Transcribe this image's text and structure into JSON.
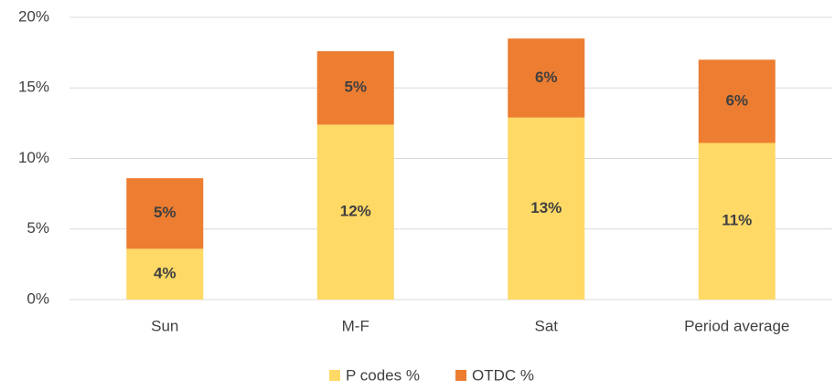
{
  "chart_data": {
    "type": "stacked_bar",
    "categories": [
      "Sun",
      "M-F",
      "Sat",
      "Period average"
    ],
    "series": [
      {
        "name": "P codes %",
        "color": "#ffd966",
        "values": [
          3.6,
          12.4,
          12.9,
          11.1
        ],
        "value_labels": [
          "4%",
          "12%",
          "13%",
          "11%"
        ]
      },
      {
        "name": "OTDC %",
        "color": "#ed7d31",
        "values": [
          5.0,
          5.2,
          5.6,
          5.9
        ],
        "value_labels": [
          "5%",
          "5%",
          "6%",
          "6%"
        ]
      }
    ],
    "ylim": [
      0,
      20
    ],
    "yticks": [
      {
        "value": 0,
        "label": "0%"
      },
      {
        "value": 5,
        "label": "5%"
      },
      {
        "value": 10,
        "label": "10%"
      },
      {
        "value": 15,
        "label": "15%"
      },
      {
        "value": 20,
        "label": "20%"
      }
    ],
    "grid": true,
    "legend": "bottom"
  }
}
